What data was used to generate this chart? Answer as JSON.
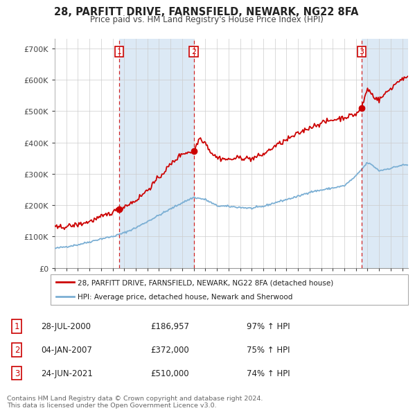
{
  "title": "28, PARFITT DRIVE, FARNSFIELD, NEWARK, NG22 8FA",
  "subtitle": "Price paid vs. HM Land Registry's House Price Index (HPI)",
  "legend_label_red": "28, PARFITT DRIVE, FARNSFIELD, NEWARK, NG22 8FA (detached house)",
  "legend_label_blue": "HPI: Average price, detached house, Newark and Sherwood",
  "footnote": "Contains HM Land Registry data © Crown copyright and database right 2024.\nThis data is licensed under the Open Government Licence v3.0.",
  "sales": [
    {
      "num": 1,
      "date": "28-JUL-2000",
      "price": 186957,
      "pct": "97% ↑ HPI",
      "x": 2000.57
    },
    {
      "num": 2,
      "date": "04-JAN-2007",
      "price": 372000,
      "pct": "75% ↑ HPI",
      "x": 2007.01
    },
    {
      "num": 3,
      "date": "24-JUN-2021",
      "price": 510000,
      "pct": "74% ↑ HPI",
      "x": 2021.48
    }
  ],
  "ylim": [
    0,
    730000
  ],
  "yticks": [
    0,
    100000,
    200000,
    300000,
    400000,
    500000,
    600000,
    700000
  ],
  "ytick_labels": [
    "£0",
    "£100K",
    "£200K",
    "£300K",
    "£400K",
    "£500K",
    "£600K",
    "£700K"
  ],
  "red_color": "#cc0000",
  "blue_color": "#7bafd4",
  "vline_color": "#cc0000",
  "grid_color": "#cccccc",
  "shade_color": "#dce9f5",
  "background_color": "#ffffff",
  "sale_marker_color": "#cc0000",
  "box_color": "#cc0000",
  "xlim_left": 1995,
  "xlim_right": 2025.5
}
